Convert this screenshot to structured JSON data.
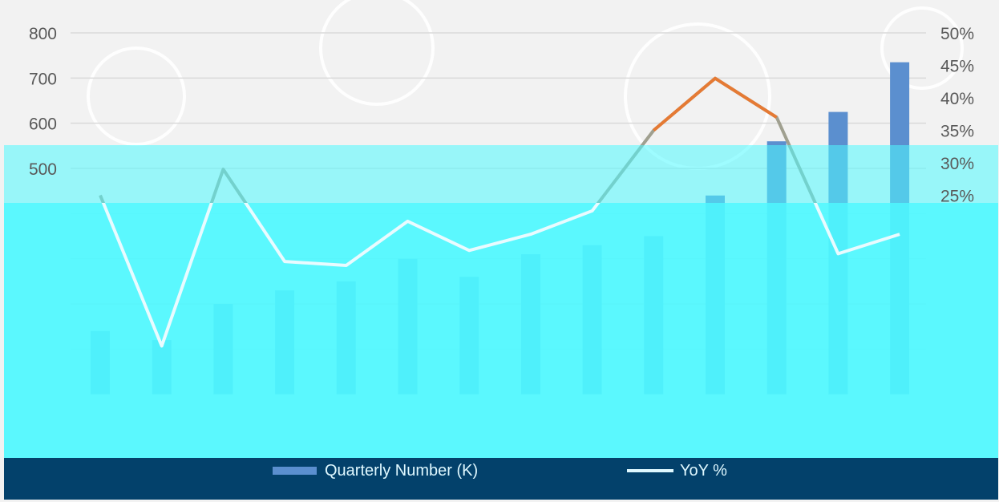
{
  "chart_data": {
    "type": "bar",
    "title": "",
    "xlabel": "",
    "ylabel": "",
    "ylim_left": [
      0,
      800
    ],
    "ylim_right": [
      0,
      50
    ],
    "left_ticks": [
      "800",
      "700",
      "600",
      "500"
    ],
    "right_ticks": [
      "50%",
      "45%",
      "40%",
      "35%",
      "30%",
      "25%"
    ],
    "grid": true,
    "legend_position": "bottom",
    "series": [
      {
        "name": "Quarterly Number (K)",
        "kind": "bar",
        "axis": "left",
        "color": "#5b8fcf",
        "values": [
          140,
          120,
          200,
          230,
          250,
          300,
          260,
          310,
          330,
          350,
          440,
          560,
          625,
          735
        ]
      },
      {
        "name": "YoY %",
        "kind": "line",
        "axis": "right",
        "color": "#e57a34",
        "values": [
          25,
          1.8,
          29,
          14.8,
          14.2,
          21,
          16.5,
          19,
          22.6,
          35,
          43,
          37,
          16,
          19
        ]
      }
    ]
  },
  "colors": {
    "overlay": "#4ef9ff",
    "legend_bar": "#03416b",
    "gridline": "#d9d9d9",
    "line_top": "#e57a34",
    "line_mid": "#a0a090",
    "line_low": "#e9fbff"
  }
}
